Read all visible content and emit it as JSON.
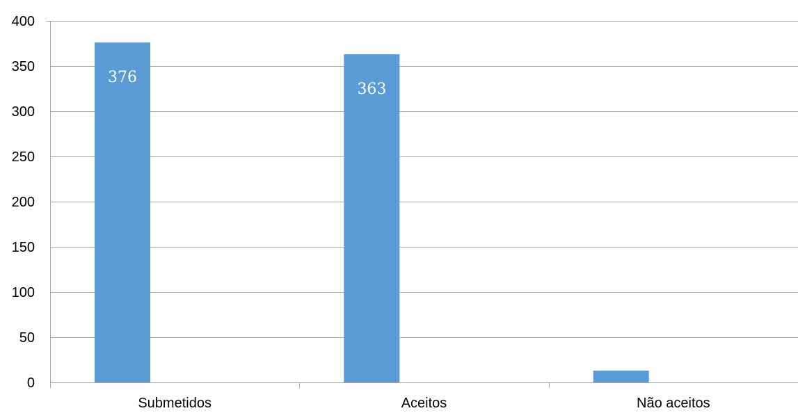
{
  "chart_data": {
    "type": "bar",
    "categories": [
      "Submetidos",
      "Aceitos",
      "Não aceitos"
    ],
    "values": [
      376,
      363,
      13
    ],
    "data_labels": [
      "376",
      "363",
      ""
    ],
    "title": "",
    "xlabel": "",
    "ylabel": "",
    "ylim": [
      0,
      400
    ],
    "yticks": [
      0,
      50,
      100,
      150,
      200,
      250,
      300,
      350,
      400
    ],
    "grid": true,
    "legend": "none",
    "bar_color": "#5B9BD5",
    "grid_color": "#A6A6A6",
    "label_color": "#FFFFFF"
  }
}
